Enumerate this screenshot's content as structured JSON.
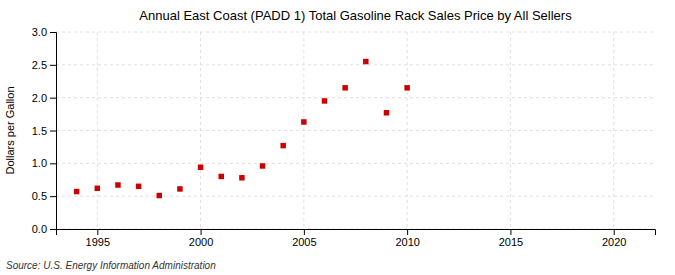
{
  "chart_data": {
    "type": "scatter",
    "title": "Annual East Coast (PADD 1) Total Gasoline Rack Sales Price by All Sellers",
    "ylabel": "Dollars per Gallon",
    "source": "Source: U.S. Energy Information Administration",
    "x": [
      1994,
      1995,
      1996,
      1997,
      1998,
      1999,
      2000,
      2001,
      2002,
      2003,
      2004,
      2005,
      2006,
      2007,
      2008,
      2009,
      2010
    ],
    "values": [
      0.57,
      0.62,
      0.67,
      0.65,
      0.51,
      0.61,
      0.94,
      0.8,
      0.78,
      0.96,
      1.27,
      1.63,
      1.95,
      2.15,
      2.55,
      1.77,
      2.15
    ],
    "color": "#cc0000",
    "marker": "square",
    "xlim": [
      1993,
      2022
    ],
    "ylim": [
      0.0,
      3.0
    ],
    "xticks": [
      1995,
      2000,
      2005,
      2010,
      2015,
      2020
    ],
    "yticks": [
      {
        "value": 0,
        "label": "0.0"
      },
      0.5,
      {
        "value": 1,
        "label": "1.0"
      },
      1.5,
      {
        "value": 2,
        "label": "2.0"
      },
      2.5,
      {
        "value": 3,
        "label": "3.0"
      }
    ],
    "grid": true
  }
}
